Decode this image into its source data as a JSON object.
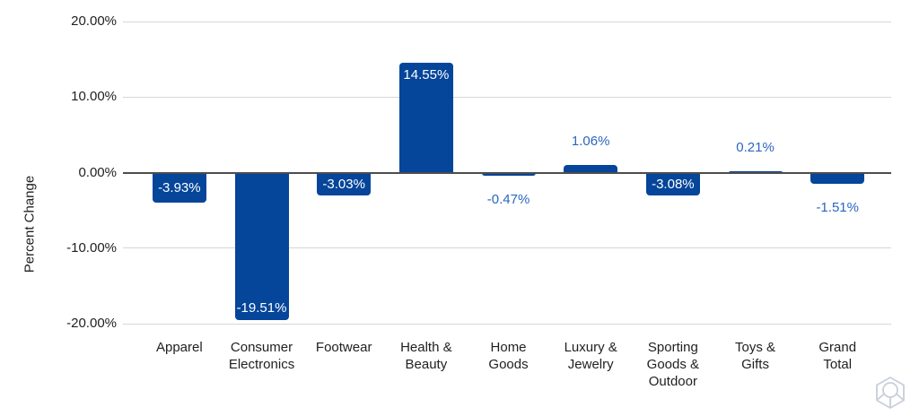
{
  "chart_data": {
    "type": "bar",
    "title": "",
    "xlabel": "",
    "ylabel": "Percent Change",
    "ylim": [
      -20,
      20
    ],
    "grid": true,
    "legend": "none",
    "categories": [
      "Apparel",
      "Consumer\nElectronics",
      "Footwear",
      "Health &\nBeauty",
      "Home\nGoods",
      "Luxury &\nJewelry",
      "Sporting\nGoods &\nOutdoor",
      "Toys &\nGifts",
      "Grand\nTotal"
    ],
    "values": [
      -3.93,
      -19.51,
      -3.03,
      14.55,
      -0.47,
      1.06,
      -3.08,
      0.21,
      -1.51
    ],
    "labels": [
      "-3.93%",
      "-19.51%",
      "-3.03%",
      "14.55%",
      "-0.47%",
      "1.06%",
      "-3.08%",
      "0.21%",
      "-1.51%"
    ],
    "yticks": [
      {
        "label": "20.00%",
        "value": 20
      },
      {
        "label": "10.00%",
        "value": 10
      },
      {
        "label": "0.00%",
        "value": 0
      },
      {
        "label": "-10.00%",
        "value": -10
      },
      {
        "label": "-20.00%",
        "value": -20
      }
    ],
    "colors": {
      "bar": "#05459a",
      "label_inside": "#ffffff",
      "label_outside": "#2a66c2",
      "gridline": "#d6d6d6",
      "zero_line": "#4d4d4d",
      "axis_text": "#212121",
      "watermark": "#c9cedb"
    }
  },
  "icons": {
    "watermark": "cube-logo-icon"
  }
}
